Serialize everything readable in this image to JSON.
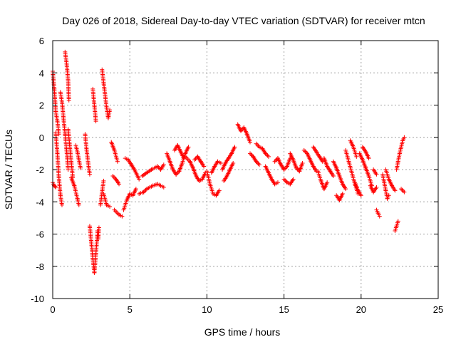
{
  "chart_data": {
    "type": "scatter",
    "title": "Day 026 of 2018, Sidereal Day-to-day VTEC variation (SDTVAR) for receiver mtcn",
    "xlabel": "GPS time / hours",
    "ylabel": "SDTVAR / TECUs",
    "xlim": [
      0,
      25
    ],
    "ylim": [
      -10,
      6
    ],
    "xticks": [
      0,
      5,
      10,
      15,
      20,
      25
    ],
    "yticks": [
      -10,
      -8,
      -6,
      -4,
      -2,
      0,
      2,
      4,
      6
    ],
    "grid": true,
    "marker": "+",
    "series_color": "#ff0000",
    "series": [
      {
        "name": "SDTVAR",
        "segments": [
          [
            0.0,
            4.1,
            0.1,
            3.0,
            0.2,
            1.6,
            0.3,
            1.0,
            0.4,
            0.2
          ],
          [
            0.0,
            -2.8,
            0.1,
            -3.0,
            0.2,
            -3.1
          ],
          [
            0.2,
            0.3,
            0.3,
            -1.0,
            0.4,
            -2.5,
            0.5,
            -3.6,
            0.6,
            -4.2
          ],
          [
            0.5,
            2.8,
            0.6,
            2.2,
            0.7,
            1.2,
            0.8,
            0.2,
            0.9,
            -0.8,
            1.0,
            -2.0
          ],
          [
            0.8,
            5.3,
            0.9,
            4.6,
            1.0,
            3.5,
            1.05,
            2.3
          ],
          [
            1.0,
            0.5,
            1.1,
            -0.5,
            1.2,
            -1.5,
            1.3,
            -2.5
          ],
          [
            1.2,
            -2.5,
            1.4,
            -3.0,
            1.6,
            -3.8,
            1.7,
            -4.2
          ],
          [
            1.5,
            -0.5,
            1.6,
            -0.9,
            1.7,
            -1.4,
            1.8,
            -1.9
          ],
          [
            2.1,
            0.2,
            2.2,
            -0.8,
            2.3,
            -1.6,
            2.4,
            -2.3
          ],
          [
            2.4,
            -5.5,
            2.5,
            -6.5,
            2.6,
            -7.5,
            2.7,
            -8.4,
            2.8,
            -7.2,
            2.9,
            -6.0
          ],
          [
            2.6,
            3.0,
            2.7,
            2.0,
            2.8,
            1.0
          ],
          [
            2.9,
            -5.8,
            2.95,
            -6.3,
            3.0,
            -5.6
          ],
          [
            3.1,
            -4.2,
            3.2,
            -3.4,
            3.3,
            -2.7
          ],
          [
            3.2,
            4.2,
            3.3,
            3.4,
            3.4,
            2.6,
            3.5,
            1.8,
            3.6,
            1.2,
            3.7,
            1.7
          ],
          [
            3.3,
            -3.5,
            3.5,
            -4.2,
            3.7,
            -4.3
          ],
          [
            3.9,
            -2.4,
            4.1,
            -2.6,
            4.3,
            -2.9
          ],
          [
            3.8,
            -0.3,
            4.0,
            -0.8,
            4.2,
            -1.5
          ],
          [
            4.0,
            -4.5,
            4.3,
            -4.8,
            4.5,
            -4.9
          ],
          [
            4.6,
            -4.5,
            4.8,
            -3.9,
            5.0,
            -3.5,
            5.2,
            -3.6,
            5.4,
            -3.2
          ],
          [
            4.7,
            -1.3,
            4.9,
            -1.4,
            5.1,
            -1.7,
            5.3,
            -2.0,
            5.6,
            -2.6
          ],
          [
            5.6,
            -3.5,
            5.9,
            -3.4,
            6.1,
            -3.2,
            6.3,
            -3.1,
            6.5,
            -3.0,
            6.8,
            -2.9,
            7.0,
            -3.0,
            7.2,
            -3.1
          ],
          [
            5.8,
            -2.4,
            6.1,
            -2.2,
            6.4,
            -2.0,
            6.8,
            -1.8,
            7.0,
            -2.0,
            7.2,
            -1.7
          ],
          [
            7.4,
            -1.0,
            7.6,
            -1.5,
            7.8,
            -2.0,
            8.0,
            -2.3,
            8.2,
            -2.1,
            8.4,
            -1.6,
            8.6,
            -1.0,
            8.8,
            -0.6
          ],
          [
            7.9,
            -0.8,
            8.1,
            -0.5,
            8.3,
            -0.9,
            8.5,
            -1.3
          ],
          [
            8.6,
            -1.2,
            8.9,
            -1.5,
            9.1,
            -1.9,
            9.3,
            -2.4,
            9.5,
            -2.7,
            9.7,
            -2.6,
            9.9,
            -2.2
          ],
          [
            9.2,
            -1.4,
            9.4,
            -1.2,
            9.6,
            -1.5,
            9.8,
            -1.8
          ],
          [
            10.0,
            -2.1,
            10.2,
            -2.9,
            10.4,
            -3.5,
            10.6,
            -3.6,
            10.8,
            -3.3
          ],
          [
            10.3,
            -2.2,
            10.5,
            -1.8,
            10.7,
            -1.5,
            10.9,
            -1.6
          ],
          [
            11.0,
            -2.0,
            11.2,
            -1.6,
            11.4,
            -1.3,
            11.6,
            -1.0,
            11.8,
            -0.6
          ],
          [
            11.1,
            -2.7,
            11.3,
            -2.4,
            11.5,
            -2.0,
            11.7,
            -1.6
          ],
          [
            12.0,
            0.8,
            12.2,
            0.4,
            12.4,
            0.6,
            12.6,
            0.2,
            12.8,
            -0.3
          ],
          [
            12.8,
            -1.0,
            13.0,
            -1.2,
            13.2,
            -1.5,
            13.4,
            -1.7
          ],
          [
            13.2,
            -0.4,
            13.4,
            -0.6,
            13.6,
            -0.7,
            13.8,
            -1.0,
            14.0,
            -1.2
          ],
          [
            13.8,
            -1.8,
            14.0,
            -2.2,
            14.2,
            -2.6,
            14.4,
            -2.9,
            14.6,
            -2.8
          ],
          [
            14.4,
            -1.5,
            14.6,
            -1.3,
            14.8,
            -1.7,
            15.0,
            -2.0,
            15.2,
            -1.8,
            15.4,
            -1.3
          ],
          [
            15.0,
            -2.6,
            15.2,
            -2.8,
            15.4,
            -2.9,
            15.6,
            -2.6
          ],
          [
            15.4,
            -1.0,
            15.6,
            -1.4,
            15.8,
            -1.9,
            16.0,
            -2.1,
            16.2,
            -1.6
          ],
          [
            16.3,
            -0.8,
            16.5,
            -1.0,
            16.7,
            -1.4,
            16.9,
            -1.8,
            17.1,
            -2.1
          ],
          [
            16.9,
            -0.6,
            17.1,
            -0.9,
            17.3,
            -1.2,
            17.5,
            -1.5
          ],
          [
            17.2,
            -2.1,
            17.4,
            -2.7,
            17.6,
            -3.2,
            17.8,
            -2.8
          ],
          [
            17.6,
            -1.3,
            17.8,
            -1.8,
            18.0,
            -2.1,
            18.2,
            -2.4
          ],
          [
            18.2,
            -1.5,
            18.4,
            -1.9,
            18.6,
            -2.4,
            18.8,
            -2.9,
            19.0,
            -3.2
          ],
          [
            18.4,
            -3.6,
            18.6,
            -3.9,
            18.8,
            -3.5
          ],
          [
            19.0,
            -0.8,
            19.2,
            -1.5,
            19.4,
            -2.2,
            19.6,
            -2.9,
            19.8,
            -3.5
          ],
          [
            19.3,
            -0.2,
            19.5,
            -0.6,
            19.7,
            -1.2
          ],
          [
            19.6,
            -2.8,
            19.8,
            -3.3,
            20.0,
            -3.6
          ],
          [
            19.9,
            -1.0,
            20.1,
            -1.4,
            20.3,
            -1.9,
            20.5,
            -2.4,
            20.7,
            -3.0
          ],
          [
            20.1,
            -0.6,
            20.3,
            -0.9,
            20.5,
            -1.3
          ],
          [
            20.6,
            -3.0,
            20.8,
            -3.4,
            21.0,
            -3.1
          ],
          [
            20.8,
            -2.0,
            21.0,
            -2.3
          ],
          [
            21.0,
            -4.5,
            21.1,
            -4.7,
            21.2,
            -4.9
          ],
          [
            21.4,
            -2.3,
            21.5,
            -2.8,
            21.6,
            -3.3,
            21.7,
            -3.8,
            21.8,
            -3.6
          ],
          [
            21.6,
            -2.0,
            21.8,
            -2.6,
            22.0,
            -3.0,
            22.2,
            -3.3
          ],
          [
            22.2,
            -5.8,
            22.3,
            -5.5,
            22.4,
            -5.2
          ],
          [
            22.3,
            -2.0,
            22.4,
            -1.5,
            22.5,
            -1.0,
            22.6,
            -0.6,
            22.7,
            -0.2,
            22.8,
            0.0
          ],
          [
            22.6,
            -3.2,
            22.8,
            -3.4
          ]
        ]
      }
    ]
  }
}
